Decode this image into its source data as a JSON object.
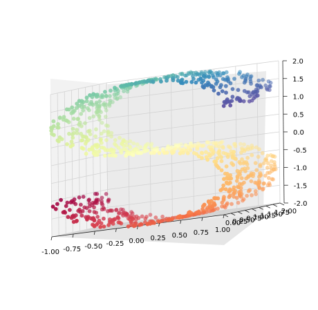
{
  "chart_data": {
    "type": "scatter",
    "projection": "3d",
    "title": "",
    "xlabel": "",
    "ylabel": "",
    "zlabel": "",
    "grid": true,
    "colormap": "Spectral",
    "xlim": [
      -1.0,
      1.0
    ],
    "ylim": [
      0.0,
      2.0
    ],
    "zlim": [
      -2.0,
      2.0
    ],
    "x_ticks": [
      "-1.00",
      "-0.75",
      "-0.50",
      "-0.25",
      "0.00",
      "0.25",
      "0.50",
      "0.75",
      "1.00"
    ],
    "y_ticks": [
      "0.00",
      "0.25",
      "0.50",
      "0.75",
      "1.00",
      "1.25",
      "1.50",
      "1.75",
      "2.00"
    ],
    "z_ticks": [
      "2.0",
      "1.5",
      "1.0",
      "0.5",
      "0.0",
      "-0.5",
      "-1.0",
      "-1.5",
      "-2.0"
    ],
    "shape": "S-curve",
    "shape_description": "Points lie on an S-shaped curve: x = sin(t), y uniform in [0, 2], z = sign(t)·(cos(t) − 1), with t from -4.7 to 4.7",
    "t_range": [
      -4.7,
      4.7
    ],
    "n_points": 1000,
    "color_by": "t"
  }
}
